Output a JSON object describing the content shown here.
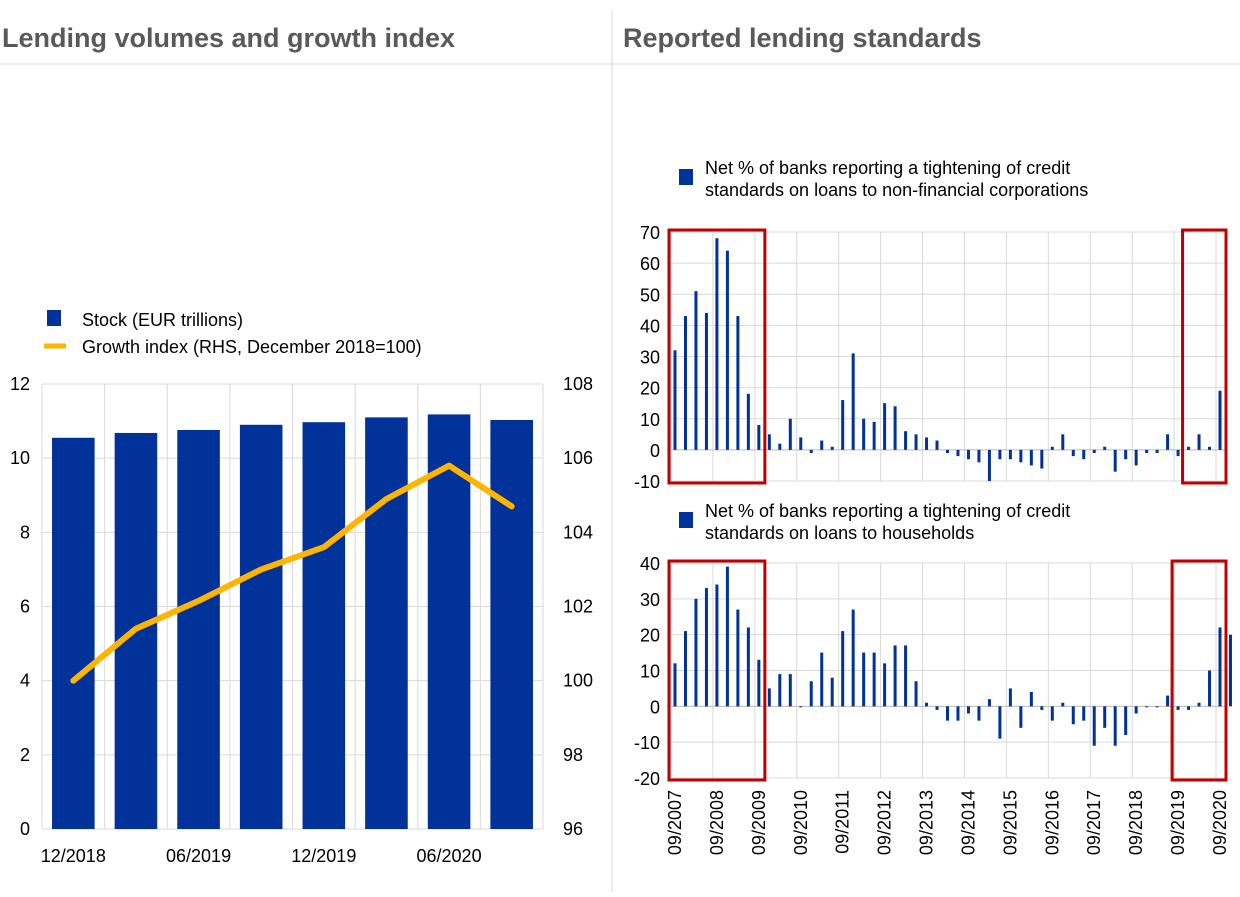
{
  "panels": {
    "left_title": "Lending volumes and growth index",
    "right_title": "Reported lending standards"
  },
  "colors": {
    "bar": "#003299",
    "line": "#FFB400",
    "highlight": "#C00000",
    "grid": "#D9D9D9",
    "title": "#595959"
  },
  "chart_data": [
    {
      "type": "bar",
      "id": "lending",
      "categories": [
        "12/2018",
        "03/2019",
        "06/2019",
        "09/2019",
        "12/2019",
        "03/2020",
        "06/2020",
        "09/2020"
      ],
      "x_tick_labels": [
        "12/2018",
        "06/2019",
        "12/2019",
        "06/2020"
      ],
      "series": [
        {
          "name": "Stock (EUR trillions)",
          "type": "bar",
          "axis": "left",
          "values": [
            10.55,
            10.68,
            10.76,
            10.9,
            10.97,
            11.1,
            11.18,
            11.03
          ]
        },
        {
          "name": "Growth index (RHS, December 2018=100)",
          "type": "line",
          "axis": "right",
          "values": [
            100.0,
            101.4,
            102.15,
            103.0,
            103.6,
            104.9,
            105.8,
            104.7
          ]
        }
      ],
      "ylim": [
        0,
        12
      ],
      "yticks": [
        0,
        2,
        4,
        6,
        8,
        10,
        12
      ],
      "y2lim": [
        96,
        108
      ],
      "y2ticks": [
        96,
        98,
        100,
        102,
        104,
        106,
        108
      ],
      "grid": true,
      "legend": "top-left"
    },
    {
      "type": "bar",
      "id": "nfc",
      "legend_label": "Net % of banks reporting a tightening of credit standards on loans to non-financial corporations",
      "legend_lines": [
        "Net % of banks reporting a tightening of credit",
        "standards on loans to non-financial corporations"
      ],
      "start_quarter": "2007Q3",
      "values": [
        32,
        43,
        51,
        44,
        68,
        64,
        43,
        18,
        8,
        5,
        2,
        10,
        4,
        -1,
        3,
        1,
        16,
        31,
        10,
        9,
        15,
        14,
        6,
        5,
        4,
        3,
        -1,
        -2,
        -3,
        -4,
        -10,
        -3,
        -3,
        -4,
        -5,
        -6,
        1,
        5,
        -2,
        -3,
        -1,
        1,
        -7,
        -3,
        -5,
        -1,
        -1,
        5,
        -2,
        1,
        5,
        1,
        19
      ],
      "ylim": [
        -10,
        70
      ],
      "yticks": [
        -10,
        0,
        10,
        20,
        30,
        40,
        50,
        60,
        70
      ],
      "grid": true,
      "legend": "top-left",
      "highlight_ranges": [
        [
          "2007Q3",
          "2009Q3"
        ],
        [
          "2019Q4",
          "2020Q3"
        ]
      ]
    },
    {
      "type": "bar",
      "id": "hh",
      "legend_label": "Net % of banks reporting a tightening of credit standards on loans to households",
      "legend_lines": [
        "Net % of banks reporting a tightening of credit",
        "standards on loans to households"
      ],
      "start_quarter": "2007Q3",
      "values": [
        12,
        21,
        30,
        33,
        34,
        39,
        27,
        22,
        13,
        5,
        9,
        9,
        0,
        7,
        15,
        8,
        21,
        27,
        15,
        15,
        12,
        17,
        17,
        7,
        1,
        -1,
        -4,
        -4,
        -2,
        -4,
        2,
        -9,
        5,
        -6,
        4,
        -1,
        -4,
        1,
        -5,
        -4,
        -11,
        -6,
        -11,
        -8,
        -2,
        0,
        0,
        3,
        -1,
        -1,
        1,
        10,
        22,
        20
      ],
      "ylim": [
        -20,
        40
      ],
      "yticks": [
        -20,
        -10,
        0,
        10,
        20,
        30,
        40
      ],
      "grid": true,
      "legend": "top-left",
      "highlight_ranges": [
        [
          "2007Q3",
          "2009Q3"
        ],
        [
          "2019Q3",
          "2020Q3"
        ]
      ],
      "x_tick_labels": [
        "09/2007",
        "09/2008",
        "09/2009",
        "09/2010",
        "09/2011",
        "09/2012",
        "09/2013",
        "09/2014",
        "09/2015",
        "09/2016",
        "09/2017",
        "09/2018",
        "09/2019",
        "09/2020"
      ]
    }
  ]
}
